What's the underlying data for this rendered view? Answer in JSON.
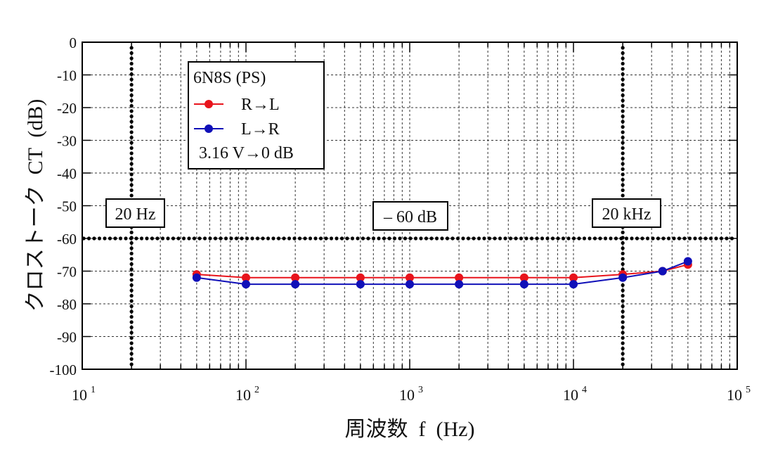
{
  "chart_data": {
    "type": "line",
    "xscale": "log",
    "xlim": [
      10,
      100000
    ],
    "ylim": [
      -100,
      0
    ],
    "grid": true,
    "xlabel": "周波数  f  (Hz)",
    "ylabel": "クロストーク  CT  (dB)",
    "x_ticks": [
      {
        "base": "10",
        "exp": "1",
        "value": 10
      },
      {
        "base": "10",
        "exp": "2",
        "value": 100
      },
      {
        "base": "10",
        "exp": "3",
        "value": 1000
      },
      {
        "base": "10",
        "exp": "4",
        "value": 10000
      },
      {
        "base": "10",
        "exp": "5",
        "value": 100000
      }
    ],
    "y_ticks": [
      "0",
      "-10",
      "-20",
      "-30",
      "-40",
      "-50",
      "-60",
      "-70",
      "-80",
      "-90",
      "-100"
    ],
    "legend": {
      "title": "6N8S (PS)",
      "note": "3.16 V→0 dB",
      "placement": "top-left"
    },
    "x": [
      50,
      100,
      200,
      500,
      1000,
      2000,
      5000,
      10000,
      20000,
      35000,
      50000
    ],
    "series": [
      {
        "name": "R→L",
        "color": "#e8141c",
        "values": [
          -71,
          -72,
          -72,
          -72,
          -72,
          -72,
          -72,
          -72,
          -71,
          -70,
          -68
        ]
      },
      {
        "name": "L→R",
        "color": "#1010b8",
        "values": [
          -72,
          -74,
          -74,
          -74,
          -74,
          -74,
          -74,
          -74,
          -72,
          -70,
          -67
        ]
      }
    ],
    "reference_lines": [
      {
        "axis": "x",
        "value": 20,
        "label": "20 Hz"
      },
      {
        "axis": "x",
        "value": 20000,
        "label": "20 kHz"
      },
      {
        "axis": "y",
        "value": -60,
        "label": "– 60 dB"
      }
    ]
  }
}
